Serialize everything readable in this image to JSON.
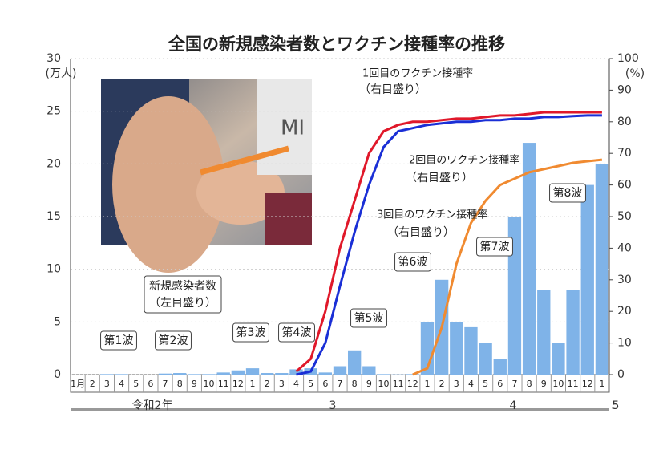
{
  "chart_data": {
    "type": "bar_line",
    "title": "全国の新規感染者数とワクチン接種率の推移",
    "y_unit": "(万人)",
    "y2_unit": "(%)",
    "categories": [
      "1月",
      "2",
      "3",
      "4",
      "5",
      "6",
      "7",
      "8",
      "9",
      "10",
      "11",
      "12",
      "1",
      "2",
      "3",
      "4",
      "5",
      "6",
      "7",
      "8",
      "9",
      "10",
      "11",
      "12",
      "1",
      "2",
      "3",
      "4",
      "5",
      "6",
      "7",
      "8",
      "9",
      "10",
      "11",
      "12",
      "1"
    ],
    "eras": [
      "令和2年",
      "3",
      "4",
      "5"
    ],
    "ylim": [
      0,
      30
    ],
    "yticks": [
      0,
      5,
      10,
      15,
      20,
      25,
      30
    ],
    "y2lim": [
      0,
      100
    ],
    "y2ticks": [
      0,
      10,
      20,
      30,
      40,
      50,
      60,
      70,
      80,
      90,
      100
    ],
    "series": [
      {
        "name": "新規感染者数",
        "color": "#7fb3e8",
        "kind": "bar",
        "values": [
          0,
          0,
          0.05,
          0.05,
          0,
          0,
          0.1,
          0.15,
          0.05,
          0.05,
          0.2,
          0.4,
          0.6,
          0.15,
          0.15,
          0.5,
          0.6,
          0.2,
          0.8,
          2.3,
          0.8,
          0.05,
          0.02,
          0.05,
          5,
          9,
          5,
          4.5,
          3,
          1.5,
          15,
          22,
          8,
          3,
          8,
          18,
          20
        ]
      },
      {
        "name": "1回目のワクチン接種率",
        "color": "#e0182a",
        "kind": "line",
        "axis": "y2",
        "values": [
          null,
          null,
          null,
          null,
          null,
          null,
          null,
          null,
          null,
          null,
          null,
          null,
          null,
          null,
          null,
          1,
          5,
          20,
          40,
          55,
          70,
          77,
          79,
          80,
          80,
          80.5,
          81,
          81,
          81.5,
          82,
          82,
          82.5,
          83,
          83,
          83,
          83,
          83
        ]
      },
      {
        "name": "2回目のワクチン接種率",
        "color": "#1a2fd6",
        "kind": "line",
        "axis": "y2",
        "values": [
          null,
          null,
          null,
          null,
          null,
          null,
          null,
          null,
          null,
          null,
          null,
          null,
          null,
          null,
          null,
          0,
          1,
          10,
          28,
          45,
          60,
          72,
          77,
          78,
          79,
          79.5,
          80,
          80,
          80.5,
          80.5,
          81,
          81,
          81.5,
          81.5,
          81.8,
          82,
          82
        ]
      },
      {
        "name": "3回目のワクチン接種率",
        "color": "#f08a30",
        "kind": "line",
        "axis": "y2",
        "values": [
          null,
          null,
          null,
          null,
          null,
          null,
          null,
          null,
          null,
          null,
          null,
          null,
          null,
          null,
          null,
          null,
          null,
          null,
          null,
          null,
          null,
          null,
          null,
          0,
          2,
          15,
          35,
          48,
          55,
          60,
          62,
          64,
          65,
          66,
          67,
          67.5,
          68
        ]
      }
    ],
    "annotations": [
      "第1波",
      "第2波",
      "第3波",
      "第4波",
      "第5波",
      "第6波",
      "第7波",
      "第8波",
      "新規感染者数",
      "（左目盛り）",
      "（右目盛り）",
      "（右目盛り）",
      "（右目盛り）"
    ]
  }
}
